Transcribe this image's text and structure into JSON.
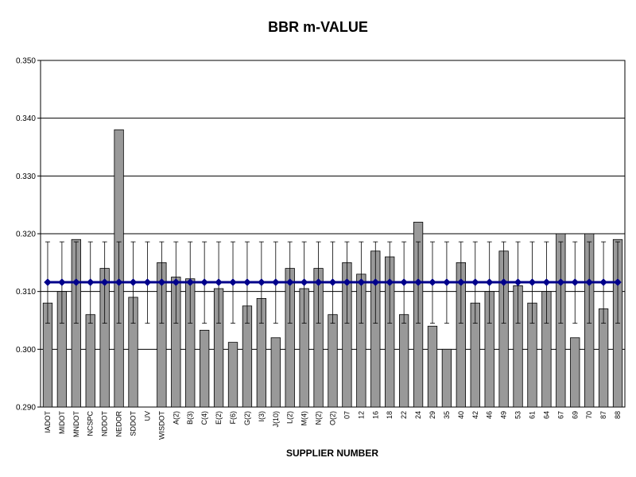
{
  "chart_data": {
    "type": "bar",
    "title": "BBR m-VALUE",
    "xlabel": "SUPPLIER NUMBER",
    "ylabel": "",
    "ylim": [
      0.29,
      0.35
    ],
    "yticks": [
      "0.290",
      "0.300",
      "0.310",
      "0.320",
      "0.330",
      "0.340",
      "0.350"
    ],
    "grid": true,
    "categories": [
      "IADOT",
      "MIDOT",
      "MNDOT",
      "NCSPC",
      "NDDOT",
      "NEDOR",
      "SDDOT",
      "UV",
      "WISDOT",
      "A(2)",
      "B(3)",
      "C(4)",
      "E(2)",
      "F(6)",
      "G(2)",
      "I(3)",
      "J(10)",
      "L(2)",
      "M(4)",
      "N(2)",
      "O(2)",
      "07",
      "12",
      "16",
      "18",
      "22",
      "24",
      "29",
      "35",
      "40",
      "42",
      "46",
      "49",
      "53",
      "61",
      "64",
      "67",
      "69",
      "70",
      "87",
      "88"
    ],
    "series": [
      {
        "type": "bar",
        "color": "#999999",
        "values": [
          0.308,
          0.31,
          0.319,
          0.306,
          0.314,
          0.338,
          0.309,
          null,
          0.315,
          0.3125,
          0.3122,
          0.3033,
          0.3105,
          0.3012,
          0.3075,
          0.3088,
          0.302,
          0.314,
          0.3105,
          0.314,
          0.306,
          0.315,
          0.313,
          0.317,
          0.316,
          0.306,
          0.322,
          0.304,
          0.3,
          0.315,
          0.308,
          0.31,
          0.317,
          0.311,
          0.308,
          0.31,
          0.32,
          0.302,
          0.32,
          0.307,
          0.319
        ]
      },
      {
        "type": "line",
        "color": "#00008b",
        "value": 0.3116,
        "error_low": 0.3045,
        "error_high": 0.3186
      }
    ]
  }
}
